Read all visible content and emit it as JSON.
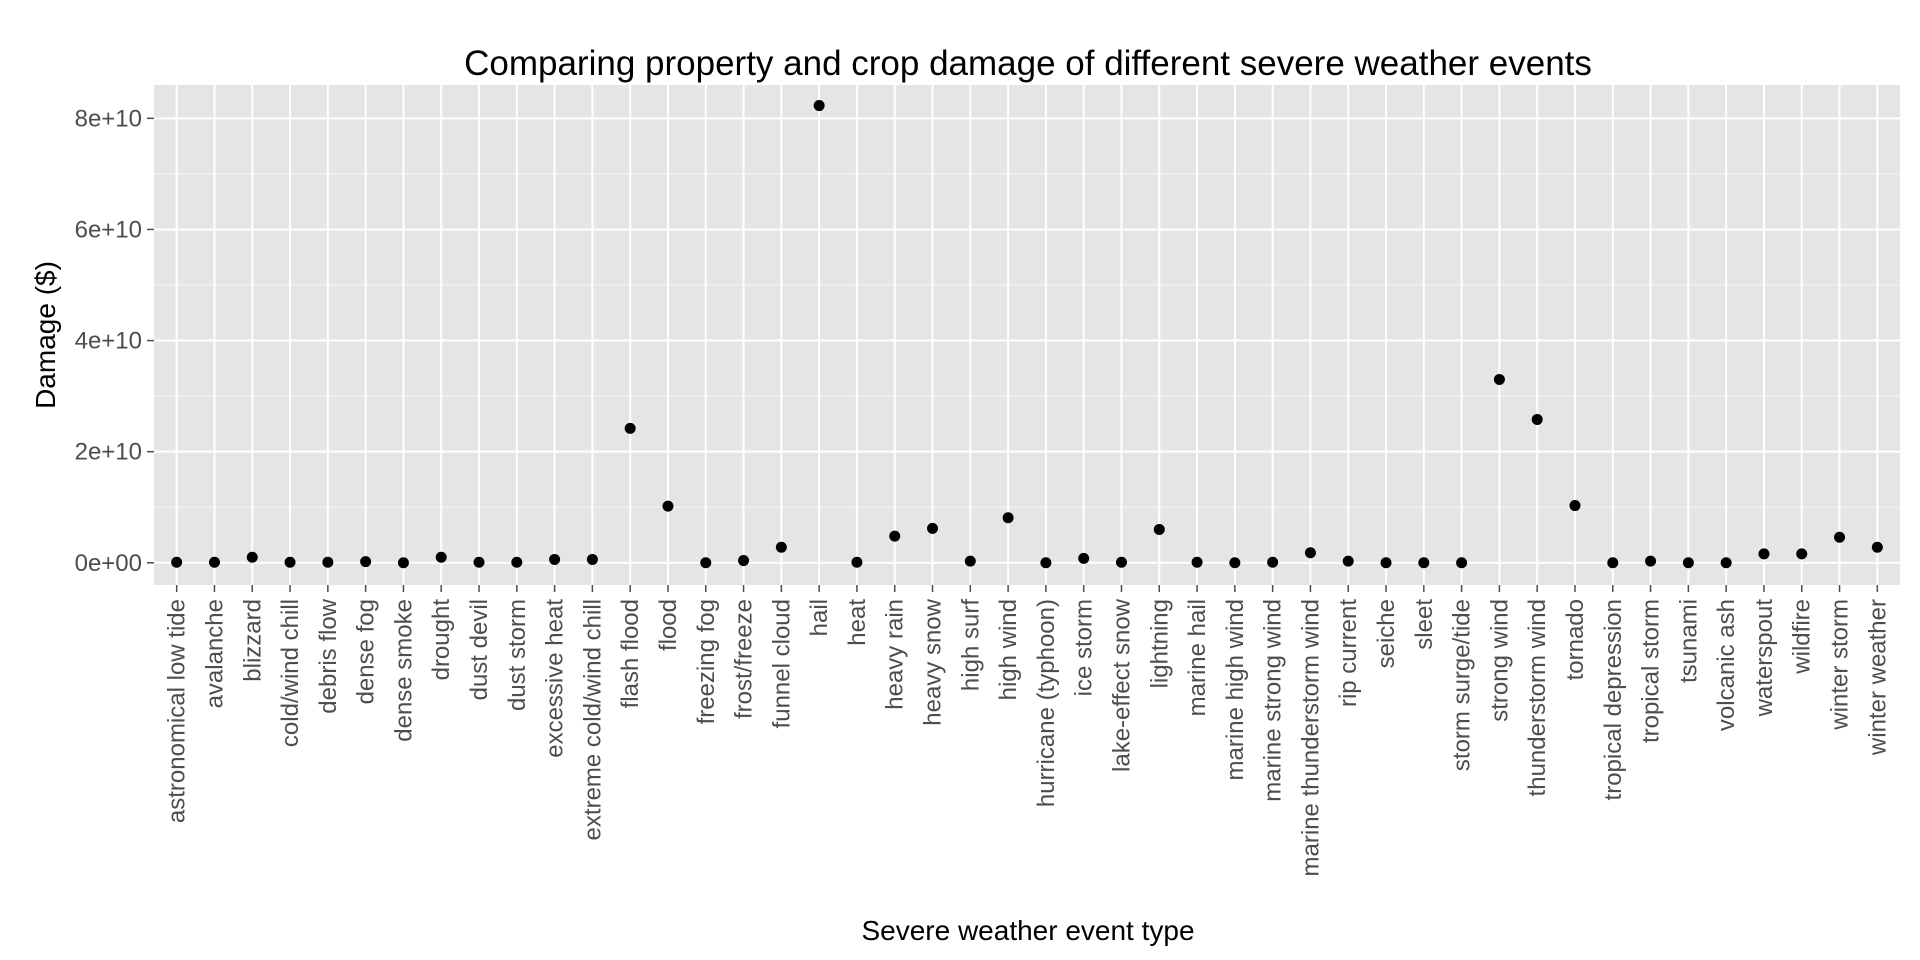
{
  "chart_data": {
    "type": "scatter",
    "title": "Comparing property and crop damage of different severe weather events",
    "xlabel": "Severe weather event type",
    "ylabel": "Damage ($)",
    "ylim": [
      -4000000000,
      86000000000
    ],
    "yticks": [
      0,
      20000000000,
      40000000000,
      60000000000,
      80000000000
    ],
    "ytick_labels": [
      "0e+00",
      "2e+10",
      "4e+10",
      "6e+10",
      "8e+10"
    ],
    "grid": true,
    "legend": "none",
    "colors": {
      "panel": "#e5e5e5",
      "grid_major": "#ffffff",
      "grid_minor": "#f2f2f2",
      "point": "#000000",
      "tick_text": "#4d4d4d"
    },
    "categories": [
      "astronomical low tide",
      "avalanche",
      "blizzard",
      "cold/wind chill",
      "debris flow",
      "dense fog",
      "dense smoke",
      "drought",
      "dust devil",
      "dust storm",
      "excessive heat",
      "extreme cold/wind chill",
      "flash flood",
      "flood",
      "freezing fog",
      "frost/freeze",
      "funnel cloud",
      "hail",
      "heat",
      "heavy rain",
      "heavy snow",
      "high surf",
      "high wind",
      "hurricane (typhoon)",
      "ice storm",
      "lake-effect snow",
      "lightning",
      "marine hail",
      "marine high wind",
      "marine strong wind",
      "marine thunderstorm wind",
      "rip current",
      "seiche",
      "sleet",
      "storm surge/tide",
      "strong wind",
      "thunderstorm wind",
      "tornado",
      "tropical depression",
      "tropical storm",
      "tsunami",
      "volcanic ash",
      "waterspout",
      "wildfire",
      "winter storm",
      "winter weather"
    ],
    "values": [
      100000000,
      100000000,
      1000000000,
      100000000,
      100000000,
      200000000,
      0,
      1000000000,
      100000000,
      100000000,
      600000000,
      600000000,
      24200000000,
      10200000000,
      0,
      400000000,
      2800000000,
      82300000000,
      100000000,
      4800000000,
      6200000000,
      300000000,
      8100000000,
      0,
      800000000,
      100000000,
      6000000000,
      100000000,
      0,
      100000000,
      1800000000,
      300000000,
      0,
      0,
      0,
      33000000000,
      25800000000,
      10300000000,
      0,
      300000000,
      0,
      0,
      1600000000,
      1600000000,
      4600000000,
      2800000000
    ]
  }
}
